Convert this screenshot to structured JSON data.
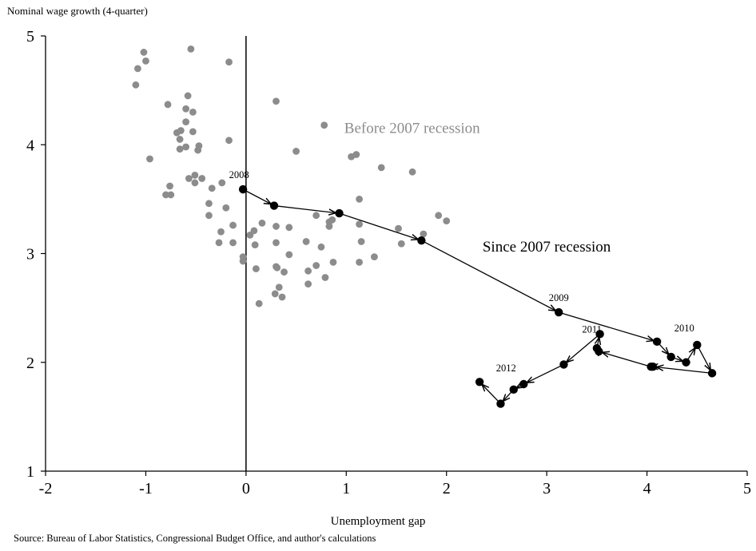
{
  "chart_data": {
    "type": "scatter",
    "ylabel": "Nominal wage growth (4-quarter)",
    "xlabel": "Unemployment gap",
    "source": "Source: Bureau of Labor Statistics, Congressional Budget Office, and author's calculations",
    "xlim": [
      -2,
      5
    ],
    "ylim": [
      1,
      5
    ],
    "x_ticks": [
      "-2",
      "-1",
      "0",
      "1",
      "2",
      "3",
      "4",
      "5"
    ],
    "y_ticks": [
      "1",
      "2",
      "3",
      "4",
      "5"
    ],
    "grid": false,
    "legend": "none",
    "colors": {
      "before": "#8c8c8c",
      "since": "#000000"
    },
    "annotations": {
      "before": "Before 2007 recession",
      "since": "Since 2007 recession"
    },
    "series": [
      {
        "name": "Before 2007 recession",
        "points": [
          [
            -1.1,
            4.55
          ],
          [
            -1.08,
            4.7
          ],
          [
            -1.02,
            4.85
          ],
          [
            -1.0,
            4.77
          ],
          [
            -0.96,
            3.87
          ],
          [
            -0.55,
            4.88
          ],
          [
            -0.17,
            4.76
          ],
          [
            -0.78,
            4.37
          ],
          [
            -0.58,
            4.45
          ],
          [
            -0.6,
            4.33
          ],
          [
            -0.53,
            4.3
          ],
          [
            -0.6,
            4.21
          ],
          [
            -0.53,
            4.12
          ],
          [
            -0.65,
            4.13
          ],
          [
            -0.69,
            4.11
          ],
          [
            -0.66,
            4.05
          ],
          [
            -0.6,
            3.98
          ],
          [
            -0.66,
            3.96
          ],
          [
            -0.47,
            3.99
          ],
          [
            -0.48,
            3.95
          ],
          [
            -0.17,
            4.04
          ],
          [
            -0.51,
            3.72
          ],
          [
            -0.57,
            3.69
          ],
          [
            -0.44,
            3.69
          ],
          [
            -0.51,
            3.65
          ],
          [
            -0.34,
            3.6
          ],
          [
            -0.24,
            3.65
          ],
          [
            -0.76,
            3.62
          ],
          [
            -0.8,
            3.54
          ],
          [
            -0.75,
            3.54
          ],
          [
            -0.37,
            3.46
          ],
          [
            -0.37,
            3.35
          ],
          [
            -0.2,
            3.42
          ],
          [
            -0.13,
            3.26
          ],
          [
            -0.25,
            3.2
          ],
          [
            -0.27,
            3.1
          ],
          [
            -0.13,
            3.1
          ],
          [
            -0.03,
            2.97
          ],
          [
            -0.03,
            2.93
          ],
          [
            0.04,
            3.17
          ],
          [
            0.08,
            3.21
          ],
          [
            0.09,
            3.08
          ],
          [
            0.16,
            3.28
          ],
          [
            0.3,
            3.25
          ],
          [
            0.3,
            3.1
          ],
          [
            0.3,
            2.88
          ],
          [
            0.31,
            2.87
          ],
          [
            0.1,
            2.86
          ],
          [
            0.38,
            2.83
          ],
          [
            0.33,
            2.69
          ],
          [
            0.29,
            2.63
          ],
          [
            0.36,
            2.6
          ],
          [
            0.13,
            2.54
          ],
          [
            0.43,
            3.24
          ],
          [
            0.43,
            2.99
          ],
          [
            0.3,
            4.4
          ],
          [
            0.78,
            4.18
          ],
          [
            0.5,
            3.94
          ],
          [
            0.6,
            3.11
          ],
          [
            0.62,
            2.84
          ],
          [
            0.62,
            2.72
          ],
          [
            0.7,
            3.35
          ],
          [
            0.7,
            2.89
          ],
          [
            0.75,
            3.06
          ],
          [
            0.79,
            2.78
          ],
          [
            0.83,
            3.29
          ],
          [
            0.83,
            3.25
          ],
          [
            0.86,
            3.31
          ],
          [
            0.87,
            2.92
          ],
          [
            1.05,
            3.89
          ],
          [
            1.1,
            3.91
          ],
          [
            1.35,
            3.79
          ],
          [
            1.66,
            3.75
          ],
          [
            1.13,
            3.5
          ],
          [
            1.13,
            3.27
          ],
          [
            1.15,
            3.11
          ],
          [
            1.13,
            2.92
          ],
          [
            1.28,
            2.97
          ],
          [
            1.52,
            3.23
          ],
          [
            1.55,
            3.09
          ],
          [
            1.77,
            3.18
          ],
          [
            1.92,
            3.35
          ],
          [
            2.0,
            3.3
          ]
        ]
      },
      {
        "name": "Since 2007 recession",
        "points": [
          [
            -0.03,
            3.59
          ],
          [
            0.28,
            3.44
          ],
          [
            0.93,
            3.37
          ],
          [
            1.75,
            3.12
          ],
          [
            3.12,
            2.46
          ],
          [
            4.1,
            2.19
          ],
          [
            4.24,
            2.05
          ],
          [
            4.39,
            2.0
          ],
          [
            4.5,
            2.16
          ],
          [
            4.65,
            1.9
          ],
          [
            4.06,
            1.96
          ],
          [
            4.04,
            1.96
          ],
          [
            3.52,
            2.1
          ],
          [
            3.5,
            2.13
          ],
          [
            3.53,
            2.26
          ],
          [
            3.17,
            1.98
          ],
          [
            2.77,
            1.8
          ],
          [
            2.67,
            1.75
          ],
          [
            2.54,
            1.62
          ],
          [
            2.33,
            1.82
          ]
        ],
        "labels": [
          {
            "text": "2008",
            "index": 0
          },
          {
            "text": "2009",
            "index": 4
          },
          {
            "text": "2010",
            "index": 8
          },
          {
            "text": "2011",
            "index": 14
          },
          {
            "text": "2012",
            "index": 16
          }
        ]
      }
    ]
  }
}
